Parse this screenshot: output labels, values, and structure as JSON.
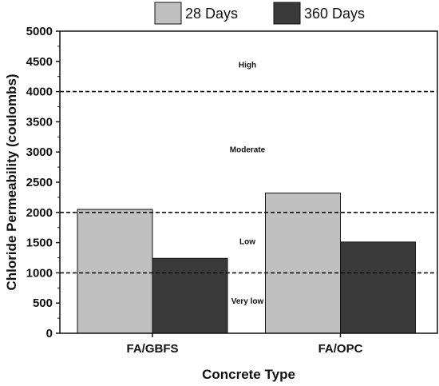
{
  "chart_data": {
    "type": "bar",
    "title": "",
    "xlabel": "Concrete Type",
    "ylabel": "Chloride Permeability (coulombs)",
    "categories": [
      "FA/GBFS",
      "FA/OPC"
    ],
    "series": [
      {
        "name": "28 Days",
        "values": [
          2050,
          2320
        ],
        "color": "#c0c0c0"
      },
      {
        "name": "360 Days",
        "values": [
          1240,
          1510
        ],
        "color": "#3a3a3a"
      }
    ],
    "ylim": [
      0,
      5000
    ],
    "yticks": [
      0,
      500,
      1000,
      1500,
      2000,
      2500,
      3000,
      3500,
      4000,
      4500,
      5000
    ],
    "ytick_labels": [
      "0",
      "500",
      "1000",
      "1500",
      "2000",
      "2500",
      "3000",
      "3500",
      "4000",
      "4500",
      "5000"
    ],
    "reference_lines": [
      1000,
      2000,
      4000
    ],
    "zones": [
      {
        "label": "High",
        "y": 4450
      },
      {
        "label": "Moderate",
        "y": 3050
      },
      {
        "label": "Low",
        "y": 1530
      },
      {
        "label": "Very low",
        "y": 540
      }
    ],
    "legend_position": "top",
    "grid": false
  }
}
